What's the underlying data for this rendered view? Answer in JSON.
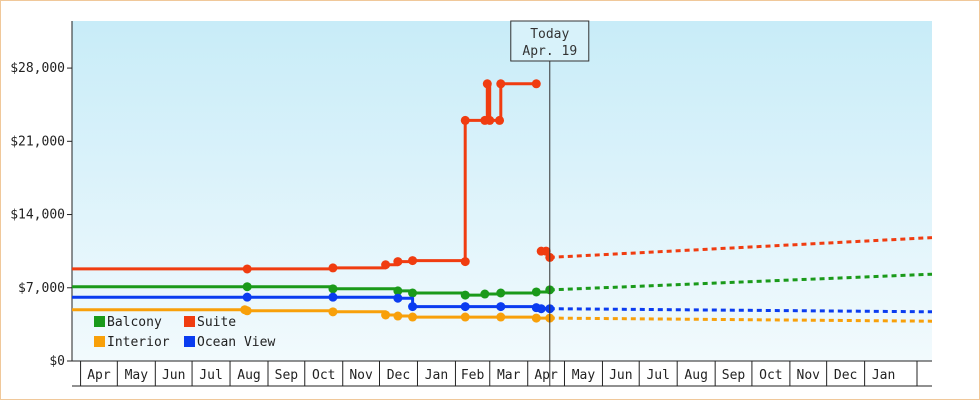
{
  "chart_data": {
    "type": "line",
    "today": {
      "title": "Today",
      "date_label": "Apr. 19",
      "date": "2019-04-19"
    },
    "y_ticks": [
      {
        "value": 0,
        "label": "$0"
      },
      {
        "value": 7000,
        "label": "$7,000"
      },
      {
        "value": 14000,
        "label": "$14,000"
      },
      {
        "value": 21000,
        "label": "$21,000"
      },
      {
        "value": 28000,
        "label": "$28,000"
      }
    ],
    "ylim": [
      0,
      32500
    ],
    "xlim": [
      "2018-03-25",
      "2020-02-25"
    ],
    "months": [
      {
        "label": "Apr",
        "start": "2018-04-01"
      },
      {
        "label": "May",
        "start": "2018-05-01"
      },
      {
        "label": "Jun",
        "start": "2018-06-01"
      },
      {
        "label": "Jul",
        "start": "2018-07-01"
      },
      {
        "label": "Aug",
        "start": "2018-08-01"
      },
      {
        "label": "Sep",
        "start": "2018-09-01"
      },
      {
        "label": "Oct",
        "start": "2018-10-01"
      },
      {
        "label": "Nov",
        "start": "2018-11-01"
      },
      {
        "label": "Dec",
        "start": "2018-12-01"
      },
      {
        "label": "Jan",
        "start": "2019-01-01"
      },
      {
        "label": "Feb",
        "start": "2019-02-01"
      },
      {
        "label": "Mar",
        "start": "2019-03-01"
      },
      {
        "label": "Apr",
        "start": "2019-04-01"
      },
      {
        "label": "May",
        "start": "2019-05-01"
      },
      {
        "label": "Jun",
        "start": "2019-06-01"
      },
      {
        "label": "Jul",
        "start": "2019-07-01"
      },
      {
        "label": "Aug",
        "start": "2019-08-01"
      },
      {
        "label": "Sep",
        "start": "2019-09-01"
      },
      {
        "label": "Oct",
        "start": "2019-10-01"
      },
      {
        "label": "Nov",
        "start": "2019-11-01"
      },
      {
        "label": "Dec",
        "start": "2019-12-01"
      },
      {
        "label": "Jan",
        "start": "2020-01-01"
      }
    ],
    "legend": [
      {
        "name": "Balcony",
        "color": "#1a9a1a"
      },
      {
        "name": "Suite",
        "color": "#f03c10"
      },
      {
        "name": "Interior",
        "color": "#f8a00a"
      },
      {
        "name": "Ocean View",
        "color": "#0a3cf0"
      }
    ],
    "series": [
      {
        "name": "Suite",
        "color": "#f03c10",
        "points": [
          [
            "2018-03-25",
            8800
          ],
          [
            "2018-08-15",
            8800
          ],
          [
            "2018-10-24",
            8900
          ],
          [
            "2018-12-06",
            9200
          ],
          [
            "2018-12-16",
            9500
          ],
          [
            "2018-12-28",
            9600
          ],
          [
            "2019-02-09",
            9500
          ],
          [
            "2019-02-09",
            23000
          ],
          [
            "2019-02-25",
            23000
          ],
          [
            "2019-02-27",
            26500
          ],
          [
            "2019-03-01",
            23000
          ],
          [
            "2019-03-09",
            23000
          ],
          [
            "2019-03-10",
            26500
          ],
          [
            "2019-04-08",
            26500
          ]
        ],
        "recent": [
          [
            "2019-04-12",
            10500
          ],
          [
            "2019-04-16",
            10500
          ],
          [
            "2019-04-19",
            9900
          ]
        ],
        "forecast": [
          [
            "2019-04-19",
            9900
          ],
          [
            "2020-02-25",
            11800
          ]
        ]
      },
      {
        "name": "Balcony",
        "color": "#1a9a1a",
        "points": [
          [
            "2018-03-25",
            7100
          ],
          [
            "2018-08-15",
            7100
          ],
          [
            "2018-10-24",
            6900
          ],
          [
            "2018-12-16",
            6700
          ],
          [
            "2018-12-28",
            6500
          ],
          [
            "2019-02-09",
            6300
          ],
          [
            "2019-02-25",
            6400
          ],
          [
            "2019-03-10",
            6500
          ],
          [
            "2019-04-08",
            6600
          ],
          [
            "2019-04-19",
            6800
          ]
        ],
        "forecast": [
          [
            "2019-04-19",
            6800
          ],
          [
            "2020-02-25",
            8300
          ]
        ]
      },
      {
        "name": "Ocean View",
        "color": "#0a3cf0",
        "points": [
          [
            "2018-03-25",
            6100
          ],
          [
            "2018-08-15",
            6100
          ],
          [
            "2018-10-24",
            6100
          ],
          [
            "2018-12-16",
            6000
          ],
          [
            "2018-12-28",
            5200
          ],
          [
            "2019-02-09",
            5200
          ],
          [
            "2019-03-10",
            5200
          ],
          [
            "2019-04-08",
            5100
          ],
          [
            "2019-04-12",
            5000
          ],
          [
            "2019-04-19",
            5000
          ]
        ],
        "forecast": [
          [
            "2019-04-19",
            5000
          ],
          [
            "2020-02-25",
            4700
          ]
        ]
      },
      {
        "name": "Interior",
        "color": "#f8a00a",
        "points": [
          [
            "2018-03-25",
            4900
          ],
          [
            "2018-08-13",
            4900
          ],
          [
            "2018-08-15",
            4800
          ],
          [
            "2018-10-24",
            4700
          ],
          [
            "2018-12-06",
            4400
          ],
          [
            "2018-12-16",
            4300
          ],
          [
            "2018-12-28",
            4200
          ],
          [
            "2019-02-09",
            4200
          ],
          [
            "2019-03-10",
            4200
          ],
          [
            "2019-04-08",
            4100
          ],
          [
            "2019-04-19",
            4100
          ]
        ],
        "forecast": [
          [
            "2019-04-19",
            4100
          ],
          [
            "2020-02-25",
            3800
          ]
        ]
      }
    ]
  }
}
